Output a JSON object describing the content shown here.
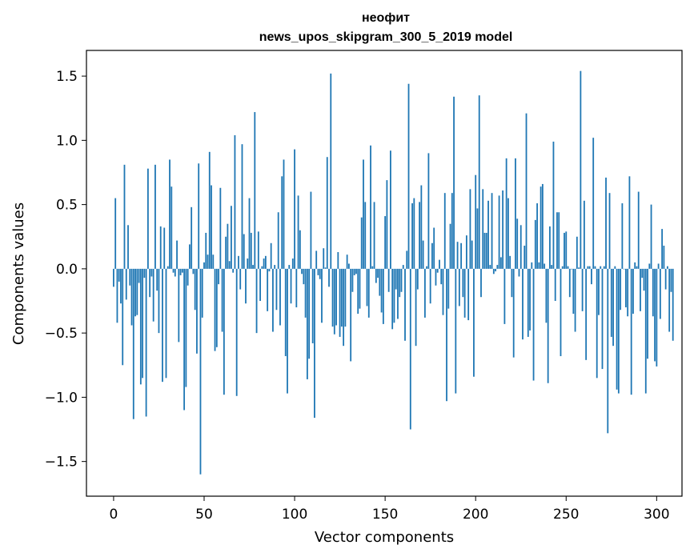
{
  "chart_data": {
    "type": "bar",
    "title": "неофит",
    "subtitle": "news_upos_skipgram_300_5_2019 model",
    "xlabel": "Vector components",
    "ylabel": "Components values",
    "xlim": [
      -15,
      314
    ],
    "ylim": [
      -1.77,
      1.7
    ],
    "xticks": [
      0,
      50,
      100,
      150,
      200,
      250,
      300
    ],
    "yticks": [
      -1.5,
      -1.0,
      -0.5,
      0.0,
      0.5,
      1.0,
      1.5
    ],
    "ytick_labels": [
      "−1.5",
      "−1.0",
      "−0.5",
      "0.0",
      "0.5",
      "1.0",
      "1.5"
    ],
    "bar_color": "#1f77b4",
    "grid": false,
    "legend": "none",
    "values": [
      -0.14,
      0.55,
      -0.42,
      -0.1,
      -0.27,
      -0.75,
      0.81,
      -0.24,
      0.34,
      -0.13,
      -0.44,
      -1.17,
      -0.37,
      -0.36,
      -0.11,
      -0.9,
      -0.85,
      -0.07,
      -1.15,
      0.78,
      -0.22,
      -0.06,
      -0.41,
      0.81,
      -0.17,
      -0.5,
      0.33,
      -0.88,
      0.32,
      -0.85,
      0.02,
      0.85,
      0.64,
      -0.03,
      -0.06,
      0.22,
      -0.57,
      -0.05,
      -0.03,
      -1.1,
      -0.92,
      -0.13,
      0.19,
      0.48,
      -0.04,
      -0.32,
      -0.66,
      0.82,
      -1.6,
      -0.38,
      0.05,
      0.28,
      0.11,
      0.91,
      0.65,
      0.11,
      -0.64,
      -0.61,
      -0.12,
      0.63,
      -0.49,
      -0.98,
      0.25,
      0.35,
      0.06,
      0.49,
      -0.03,
      1.04,
      -0.99,
      0.1,
      -0.16,
      0.97,
      0.27,
      -0.27,
      0.08,
      0.55,
      0.28,
      0.03,
      1.22,
      -0.5,
      0.29,
      -0.25,
      0.02,
      0.08,
      0.1,
      -0.33,
      -0.02,
      0.2,
      -0.49,
      0.03,
      -0.32,
      0.44,
      -0.44,
      0.72,
      0.85,
      -0.68,
      -0.97,
      0.03,
      -0.27,
      0.08,
      0.93,
      -0.3,
      0.57,
      0.3,
      -0.04,
      -0.12,
      -0.38,
      -0.86,
      -0.7,
      0.6,
      -0.58,
      -1.16,
      0.14,
      -0.05,
      -0.08,
      -0.42,
      0.16,
      0.01,
      0.87,
      -0.14,
      1.52,
      -0.45,
      -0.51,
      -0.44,
      0.13,
      -0.53,
      -0.45,
      -0.6,
      -0.45,
      0.11,
      0.04,
      -0.72,
      -0.18,
      -0.05,
      -0.04,
      -0.35,
      -0.31,
      0.4,
      0.85,
      0.52,
      -0.29,
      -0.38,
      0.96,
      0.02,
      0.52,
      -0.11,
      -0.07,
      -0.21,
      -0.34,
      -0.43,
      0.41,
      0.69,
      -0.18,
      0.92,
      -0.47,
      -0.42,
      -0.16,
      -0.39,
      -0.22,
      -0.18,
      0.03,
      -0.56,
      0.14,
      1.44,
      -1.25,
      0.51,
      0.55,
      -0.6,
      -0.16,
      0.52,
      0.65,
      0.22,
      -0.38,
      0.02,
      0.9,
      -0.27,
      0.2,
      0.32,
      -0.13,
      -0.03,
      0.07,
      -0.12,
      -0.36,
      0.59,
      -1.03,
      -0.31,
      0.35,
      0.59,
      1.34,
      -0.97,
      0.21,
      -0.29,
      0.2,
      -0.22,
      -0.38,
      0.26,
      -0.4,
      0.62,
      0.22,
      -0.84,
      0.73,
      0.47,
      1.35,
      -0.22,
      0.62,
      0.28,
      0.28,
      0.53,
      0.03,
      0.59,
      -0.04,
      -0.02,
      0.03,
      0.57,
      0.09,
      0.61,
      -0.43,
      0.86,
      0.55,
      0.1,
      -0.22,
      -0.69,
      0.86,
      0.39,
      -0.06,
      0.34,
      -0.55,
      0.18,
      1.21,
      -0.53,
      -0.48,
      0.05,
      -0.87,
      0.38,
      0.51,
      0.05,
      0.64,
      0.66,
      0.04,
      -0.42,
      -0.89,
      0.33,
      0.03,
      0.99,
      -0.25,
      0.44,
      0.44,
      -0.68,
      0.02,
      0.28,
      0.29,
      0.02,
      -0.22,
      0.0,
      -0.35,
      -0.49,
      0.25,
      0.01,
      1.54,
      -0.33,
      0.53,
      -0.71,
      0.02,
      0.02,
      -0.12,
      1.02,
      0.02,
      -0.85,
      -0.36,
      0.02,
      -0.78,
      0.02,
      0.71,
      -1.28,
      0.59,
      -0.53,
      -0.6,
      0.02,
      -0.94,
      -0.97,
      -0.32,
      0.51,
      0.0,
      -0.3,
      -0.37,
      0.72,
      -0.98,
      -0.35,
      0.05,
      0.02,
      0.6,
      -0.33,
      -0.07,
      -0.17,
      -0.97,
      -0.7,
      0.04,
      0.5,
      -0.37,
      -0.72,
      -0.76,
      0.04,
      -0.39,
      0.31,
      0.18,
      -0.16,
      0.02,
      -0.49,
      -0.18,
      -0.56
    ]
  }
}
